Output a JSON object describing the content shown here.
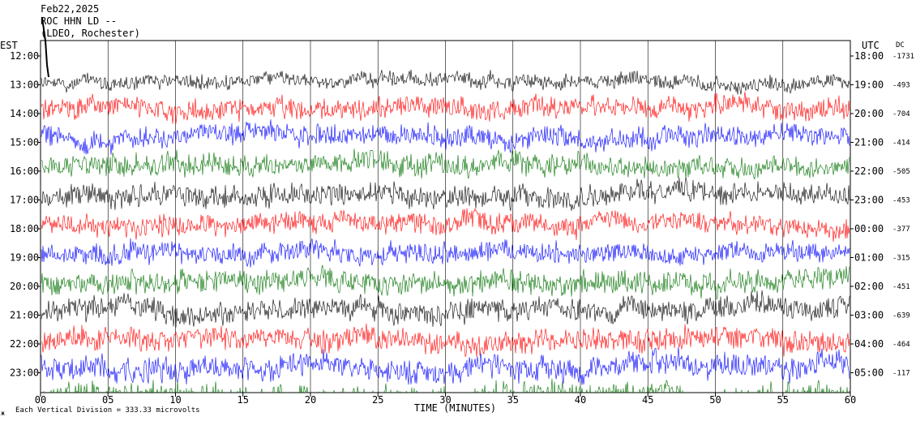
{
  "header": {
    "date": "Feb22,2025",
    "station": "ROC HHN LD --",
    "network": "(LDEO, Rochester)"
  },
  "chart_data": {
    "type": "line",
    "left_zone_label": "EST",
    "right_zone_label": "UTC",
    "dc_label": "DC",
    "xlabel": "TIME (MINUTES)",
    "xlim": [
      0,
      60
    ],
    "x_ticks": [
      "00",
      "05",
      "10",
      "15",
      "20",
      "25",
      "30",
      "35",
      "40",
      "45",
      "50",
      "55",
      "60"
    ],
    "footer": "Each Vertical Division =  333.33 microvolts",
    "footer_mark": "ж",
    "trace_colors": [
      "#000000",
      "#ff0000",
      "#0000ff",
      "#007000"
    ],
    "rows": [
      {
        "est": "12:00",
        "utc": "18:00",
        "dc": "-1731",
        "color": "#000000",
        "amplitude": 0.6
      },
      {
        "est": "13:00",
        "utc": "19:00",
        "dc": "-493",
        "color": "#ff0000",
        "amplitude": 0.9
      },
      {
        "est": "14:00",
        "utc": "20:00",
        "dc": "-704",
        "color": "#0000ff",
        "amplitude": 0.85
      },
      {
        "est": "15:00",
        "utc": "21:00",
        "dc": "-414",
        "color": "#007000",
        "amplitude": 0.9
      },
      {
        "est": "16:00",
        "utc": "22:00",
        "dc": "-505",
        "color": "#000000",
        "amplitude": 0.9
      },
      {
        "est": "17:00",
        "utc": "23:00",
        "dc": "-453",
        "color": "#ff0000",
        "amplitude": 0.85
      },
      {
        "est": "18:00",
        "utc": "00:00",
        "dc": "-377",
        "color": "#0000ff",
        "amplitude": 0.85
      },
      {
        "est": "19:00",
        "utc": "01:00",
        "dc": "-315",
        "color": "#007000",
        "amplitude": 0.95
      },
      {
        "est": "20:00",
        "utc": "02:00",
        "dc": "-451",
        "color": "#000000",
        "amplitude": 0.95
      },
      {
        "est": "21:00",
        "utc": "03:00",
        "dc": "-639",
        "color": "#ff0000",
        "amplitude": 0.95
      },
      {
        "est": "22:00",
        "utc": "04:00",
        "dc": "-464",
        "color": "#0000ff",
        "amplitude": 1.0
      },
      {
        "est": "23:00",
        "utc": "05:00",
        "dc": "-117",
        "color": "#007000",
        "amplitude": 1.05
      }
    ]
  }
}
